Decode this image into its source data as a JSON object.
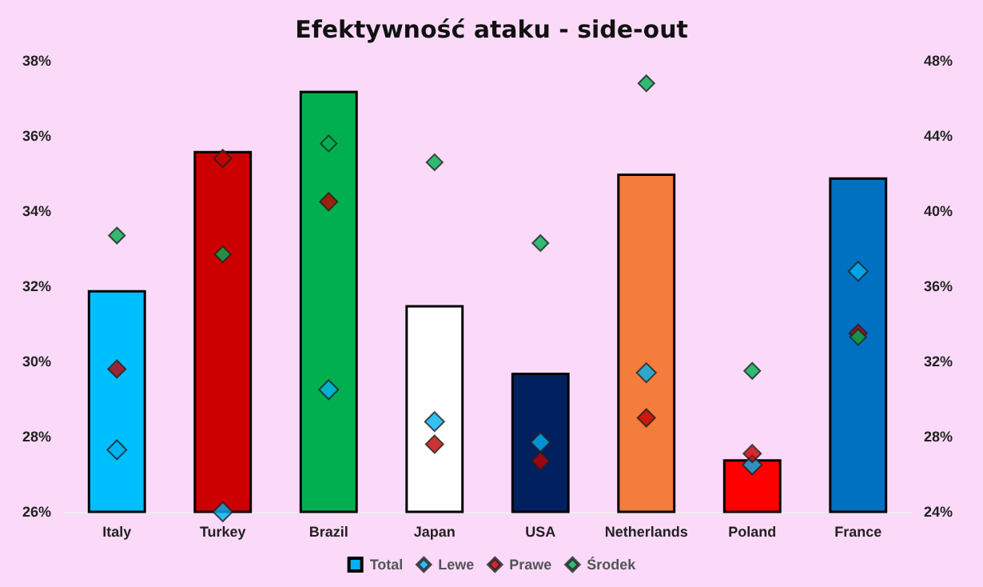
{
  "chart_data": {
    "type": "bar",
    "title": "Efektywność ataku - side-out",
    "categories": [
      "Italy",
      "Turkey",
      "Brazil",
      "Japan",
      "USA",
      "Netherlands",
      "Poland",
      "France"
    ],
    "series": [
      {
        "name": "Total",
        "color": "#00b0f0",
        "colors": [
          "#00bfff",
          "#cc0000",
          "#00b050",
          "#ffffff",
          "#002060",
          "#f47c3c",
          "#ff0000",
          "#0070c0"
        ],
        "values": [
          31.9,
          35.6,
          37.2,
          31.5,
          29.7,
          35.0,
          27.4,
          34.9
        ]
      },
      {
        "name": "Lewe",
        "type": "scatter",
        "axis": "y2",
        "color": "#00b0f0",
        "values": [
          27.3,
          24.0,
          30.5,
          28.8,
          27.7,
          31.4,
          26.5,
          36.8
        ]
      },
      {
        "name": "Prawe",
        "type": "scatter",
        "axis": "y2",
        "color": "#c00000",
        "values": [
          31.6,
          42.8,
          40.5,
          27.6,
          26.7,
          29.0,
          27.1,
          33.5
        ]
      },
      {
        "name": "Środek",
        "type": "scatter",
        "axis": "y2",
        "color": "#00b050",
        "values": [
          38.7,
          37.7,
          43.6,
          42.6,
          38.3,
          46.8,
          31.5,
          33.3
        ]
      }
    ],
    "ylim": [
      26,
      38
    ],
    "yticks": [
      {
        "value": 26,
        "label": "26%"
      },
      {
        "value": 28,
        "label": "28%"
      },
      {
        "value": 30,
        "label": "30%"
      },
      {
        "value": 32,
        "label": "32%"
      },
      {
        "value": 34,
        "label": "34%"
      },
      {
        "value": 36,
        "label": "36%"
      },
      {
        "value": 38,
        "label": "38%"
      }
    ],
    "y2lim": [
      24,
      48
    ],
    "y2ticks": [
      {
        "value": 24,
        "label": "24%"
      },
      {
        "value": 28,
        "label": "28%"
      },
      {
        "value": 32,
        "label": "32%"
      },
      {
        "value": 36,
        "label": "36%"
      },
      {
        "value": 40,
        "label": "40%"
      },
      {
        "value": 44,
        "label": "44%"
      },
      {
        "value": 48,
        "label": "48%"
      }
    ],
    "marker": "diamond",
    "grid": false,
    "legend": "bottom"
  }
}
